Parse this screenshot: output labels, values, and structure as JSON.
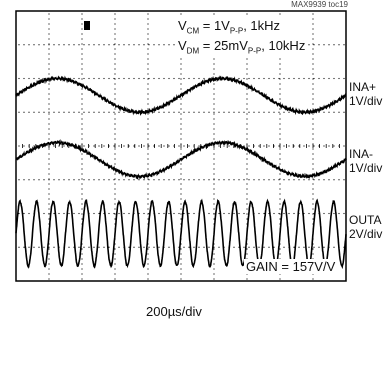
{
  "figure_tag": "MAX9939 toc19",
  "annotations": {
    "vcm_prefix": "V",
    "vcm_sub": "CM",
    "vcm_mid": " = 1V",
    "vcm_sub2": "P-P",
    "vcm_suffix": ", 1kHz",
    "vdm_prefix": "V",
    "vdm_sub": "DM",
    "vdm_mid": " = 25mV",
    "vdm_sub2": "P-P",
    "vdm_suffix": ", 10kHz",
    "gain": "GAIN = 157V/V"
  },
  "xlabel": "200µs/div",
  "traces": [
    {
      "name": "INA+",
      "scale": "1V/div"
    },
    {
      "name": "INA-",
      "scale": "1V/div"
    },
    {
      "name": "OUTA",
      "scale": "2V/div"
    }
  ],
  "chart_data": {
    "type": "line",
    "xlabel": "200µs/div",
    "grid": true,
    "x_divisions": 10,
    "y_divisions": 8,
    "series": [
      {
        "name": "INA+",
        "scale": "1V/div",
        "signal": "1kHz sine, 1VP-P",
        "center_div": 5.5,
        "amplitude_div": 0.5,
        "frequency_khz": 1,
        "phase_deg": 0
      },
      {
        "name": "INA-",
        "scale": "1V/div",
        "signal": "1kHz sine, 1VP-P",
        "center_div": 3.6,
        "amplitude_div": 0.5,
        "frequency_khz": 1,
        "phase_deg": 0
      },
      {
        "name": "OUTA",
        "scale": "2V/div",
        "signal": "10kHz sine, amplified",
        "center_div": 1.4,
        "amplitude_div": 0.95,
        "frequency_khz": 10,
        "phase_deg": 0
      }
    ]
  }
}
